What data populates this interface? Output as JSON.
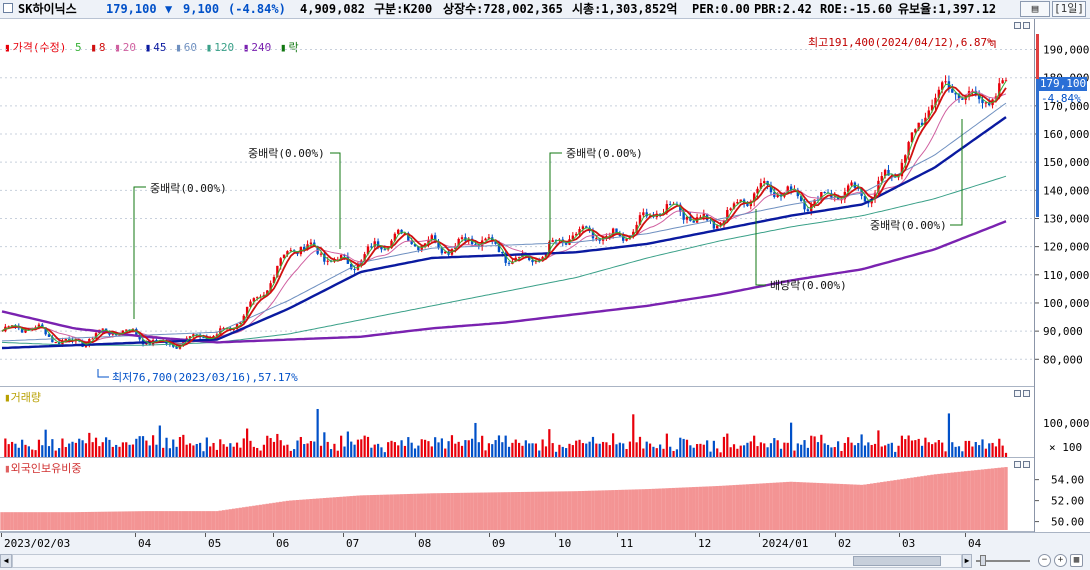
{
  "header": {
    "name": "SK하이닉스",
    "price": "179,100",
    "arrow": "▼",
    "change": "9,100",
    "change_pct": "(-4.84%)",
    "volume": "4,909,082",
    "market": "구분:K200",
    "shares": "상장수:728,002,365",
    "mcap": "시총:1,303,852억",
    "per": "PER:0.00",
    "pbr": "PBR:2.42",
    "roe": "ROE:-15.60",
    "holding": "유보율:1,397.12",
    "period": "[1일]"
  },
  "legend": {
    "price": "가격(수정)",
    "ma": [
      "5",
      "8",
      "20",
      "45",
      "60",
      "120",
      "240"
    ],
    "fall": "락"
  },
  "volume_panel": {
    "title": "거래량",
    "tick_100000": "100,000",
    "unit": "× 100"
  },
  "foreign_panel": {
    "title": "외국인보유비중",
    "ticks": [
      "54.00",
      "52.00",
      "50.00"
    ]
  },
  "price_axis": [
    "190,000",
    "180,000",
    "170,000",
    "160,000",
    "150,000",
    "140,000",
    "130,000",
    "120,000",
    "110,000",
    "100,000",
    "90,000",
    "80,000"
  ],
  "price_tag": {
    "price": "179,100",
    "pct": "-4.84%"
  },
  "annotations": {
    "max": "최고191,400(2024/04/12),6.87%",
    "min": "최저76,700(2023/03/16),57.17%",
    "ev1": "중배락(0.00%)",
    "ev2": "중배락(0.00%)",
    "ev3": "중배락(0.00%)",
    "ev4": "배당락(0.00%)",
    "ev5": "중배락(0.00%)"
  },
  "x_axis": [
    "2023/02/03",
    "04",
    "05",
    "06",
    "07",
    "08",
    "09",
    "10",
    "11",
    "12",
    "2024/01",
    "02",
    "03",
    "04"
  ],
  "colors": {
    "up": "#e8000b",
    "down": "#0050c8",
    "ma5": "#35b035",
    "ma8": "#d01010",
    "ma20": "#d060a0",
    "ma45": "#0a1aa0",
    "ma60": "#6f90c0",
    "ma120": "#3aa088",
    "ma240": "#7a22b0"
  },
  "chart_data": {
    "type": "line",
    "title": "SK하이닉스",
    "y_range": [
      73000,
      198000
    ],
    "x": [
      "2023/02",
      "2023/03",
      "2023/04",
      "2023/05",
      "2023/06",
      "2023/07",
      "2023/08",
      "2023/09",
      "2023/10",
      "2023/11",
      "2023/12",
      "2024/01",
      "2024/02",
      "2024/03",
      "2024/04"
    ],
    "series": [
      {
        "name": "가격(수정)",
        "values": [
          90000,
          88000,
          88000,
          86000,
          117000,
          117000,
          124000,
          117000,
          121000,
          130000,
          132000,
          141000,
          135000,
          170000,
          179100
        ]
      },
      {
        "name": "45",
        "values": [
          84000,
          85000,
          86000,
          87000,
          98000,
          111000,
          116000,
          117000,
          118000,
          121000,
          126000,
          131000,
          135000,
          148000,
          166000
        ]
      },
      {
        "name": "120",
        "values": [
          86000,
          85000,
          85000,
          86000,
          89000,
          94000,
          99000,
          104000,
          109000,
          116000,
          122000,
          127000,
          131000,
          137000,
          145000
        ]
      },
      {
        "name": "240",
        "values": [
          97000,
          91000,
          88000,
          86000,
          87000,
          88000,
          91000,
          93000,
          96000,
          99000,
          103000,
          108000,
          112000,
          119000,
          129000
        ]
      }
    ],
    "max": {
      "date": "2024/04/12",
      "value": 191400
    },
    "min": {
      "date": "2023/03/16",
      "value": 76700
    },
    "volume_max": 100000,
    "foreign_ratio": [
      50.9,
      50.9,
      51.0,
      51.0,
      52.0,
      52.5,
      52.7,
      52.8,
      52.9,
      53.1,
      53.4,
      53.8,
      53.5,
      54.5,
      55.2
    ],
    "foreign_ratio_range": [
      49.2,
      55.3
    ]
  }
}
